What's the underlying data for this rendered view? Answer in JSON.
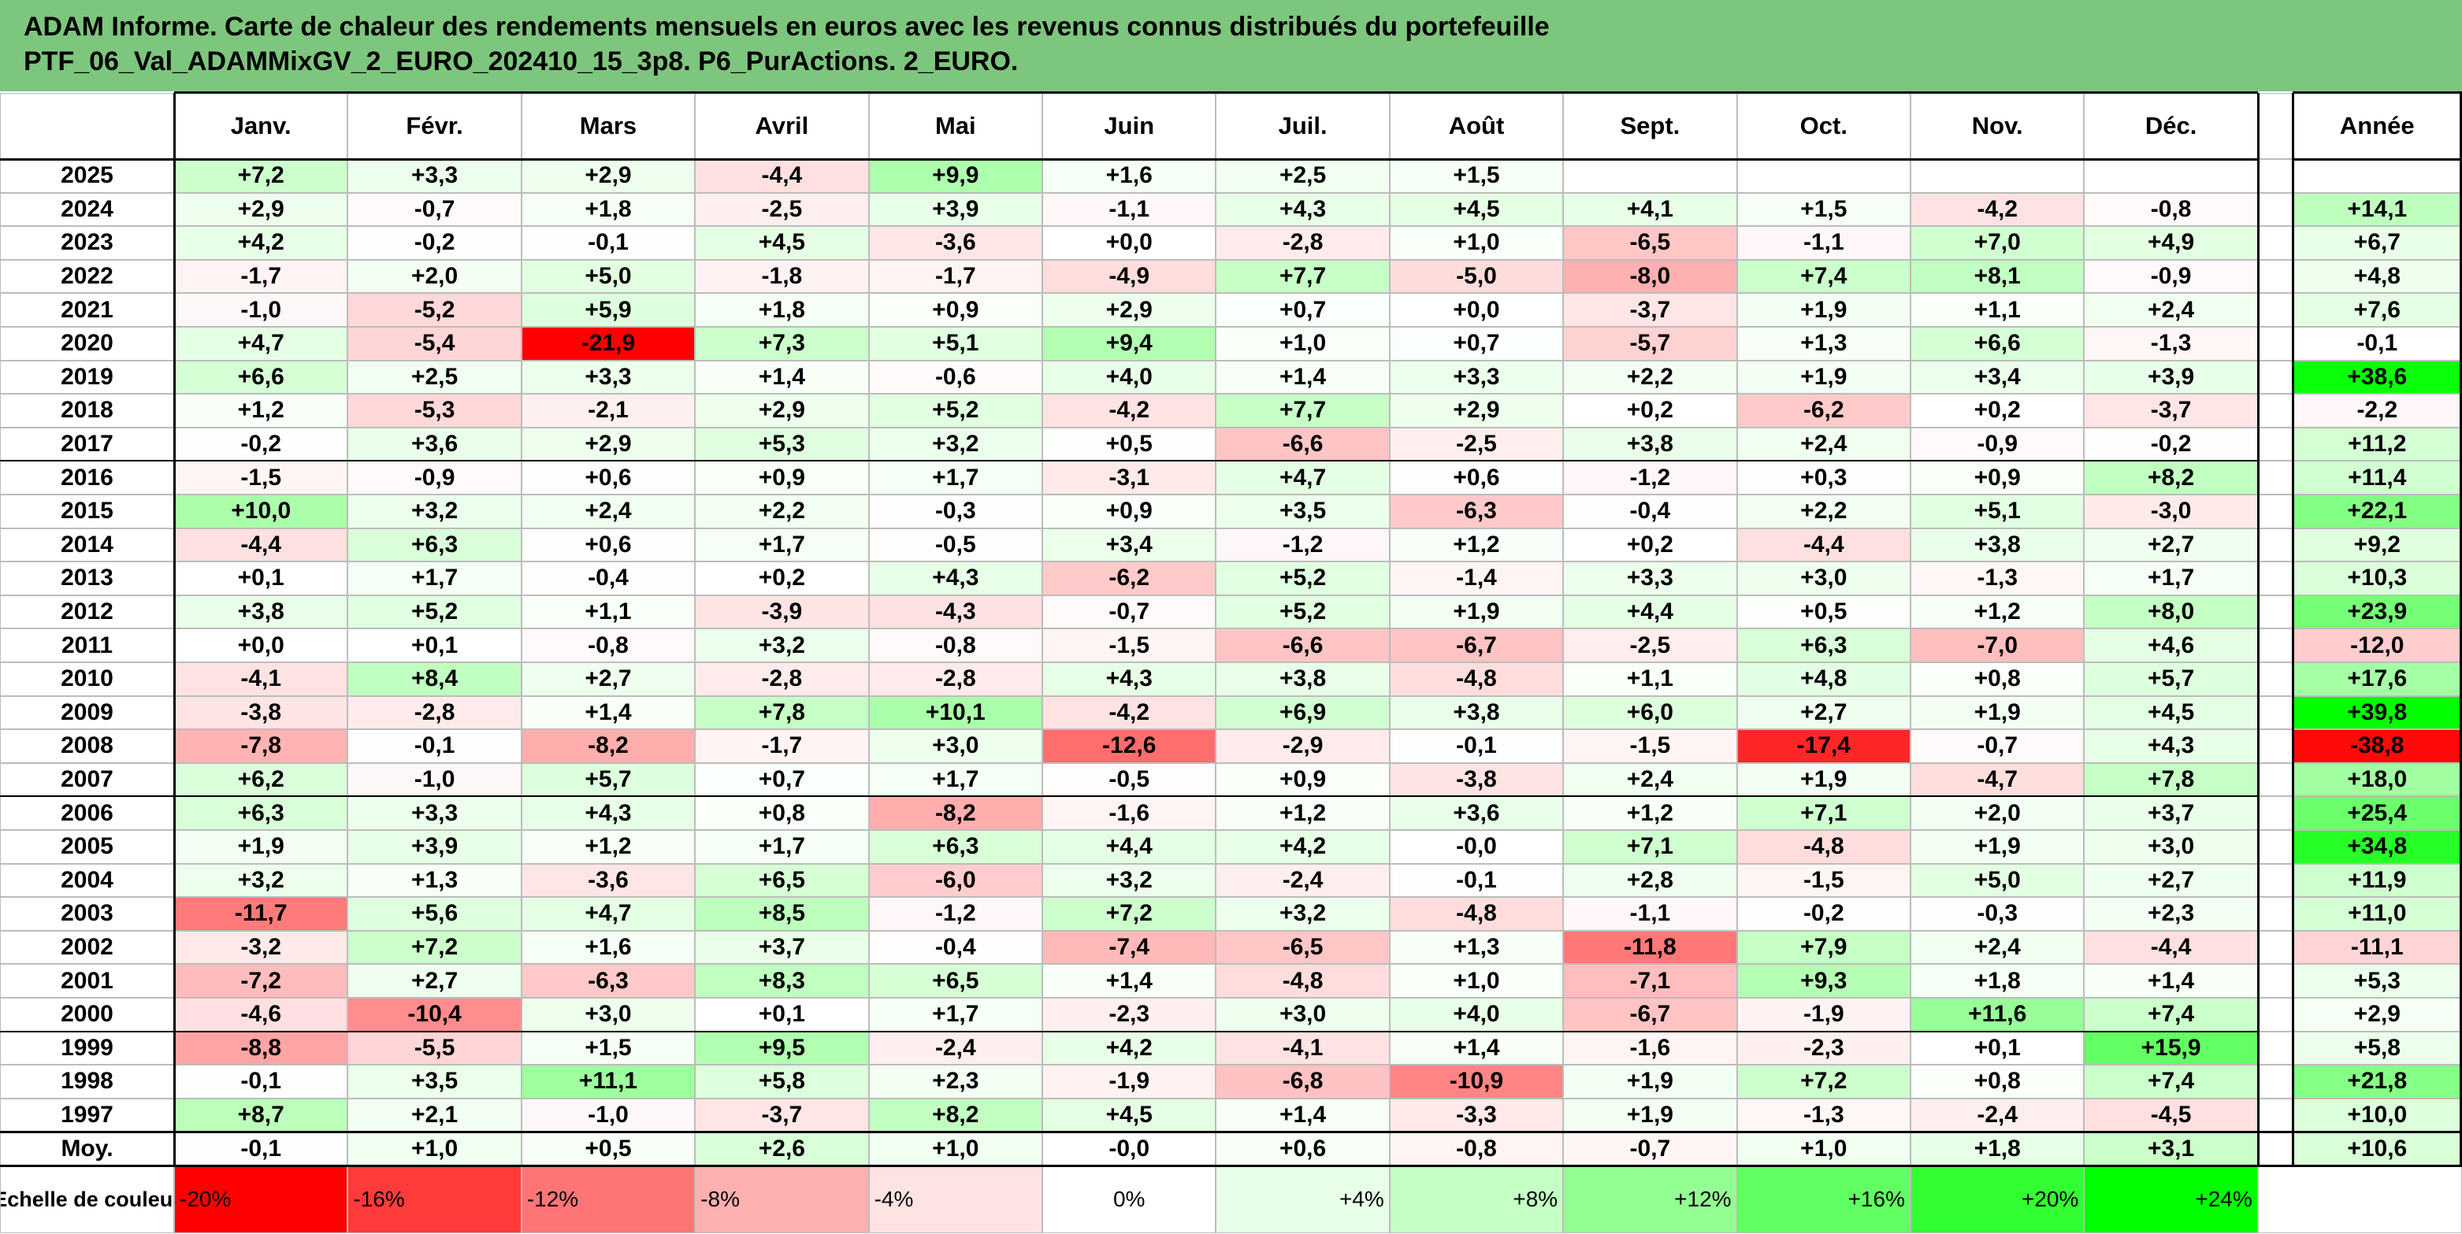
{
  "title_lines": [
    "ADAM Informe. Carte de chaleur des rendements mensuels en euros avec les revenus connus distribués du portefeuille",
    "PTF_06_Val_ADAMMixGV_2_EURO_202410_15_3p8. P6_PurActions. 2_EURO."
  ],
  "chart_data": {
    "type": "heatmap",
    "months": [
      "Janv.",
      "Févr.",
      "Mars",
      "Avril",
      "Mai",
      "Juin",
      "Juil.",
      "Août",
      "Sept.",
      "Oct.",
      "Nov.",
      "Déc."
    ],
    "year_header": "Année",
    "rows": [
      {
        "label": "2025",
        "months": [
          "+7,2",
          "+3,3",
          "+2,9",
          "-4,4",
          "+9,9",
          "+1,6",
          "+2,5",
          "+1,5",
          "",
          "",
          "",
          ""
        ],
        "year": ""
      },
      {
        "label": "2024",
        "months": [
          "+2,9",
          "-0,7",
          "+1,8",
          "-2,5",
          "+3,9",
          "-1,1",
          "+4,3",
          "+4,5",
          "+4,1",
          "+1,5",
          "-4,2",
          "-0,8"
        ],
        "year": "+14,1"
      },
      {
        "label": "2023",
        "months": [
          "+4,2",
          "-0,2",
          "-0,1",
          "+4,5",
          "-3,6",
          "+0,0",
          "-2,8",
          "+1,0",
          "-6,5",
          "-1,1",
          "+7,0",
          "+4,9"
        ],
        "year": "+6,7"
      },
      {
        "label": "2022",
        "months": [
          "-1,7",
          "+2,0",
          "+5,0",
          "-1,8",
          "-1,7",
          "-4,9",
          "+7,7",
          "-5,0",
          "-8,0",
          "+7,4",
          "+8,1",
          "-0,9"
        ],
        "year": "+4,8"
      },
      {
        "label": "2021",
        "months": [
          "-1,0",
          "-5,2",
          "+5,9",
          "+1,8",
          "+0,9",
          "+2,9",
          "+0,7",
          "+0,0",
          "-3,7",
          "+1,9",
          "+1,1",
          "+2,4"
        ],
        "year": "+7,6"
      },
      {
        "label": "2020",
        "months": [
          "+4,7",
          "-5,4",
          "-21,9",
          "+7,3",
          "+5,1",
          "+9,4",
          "+1,0",
          "+0,7",
          "-5,7",
          "+1,3",
          "+6,6",
          "-1,3"
        ],
        "year": "-0,1"
      },
      {
        "label": "2019",
        "months": [
          "+6,6",
          "+2,5",
          "+3,3",
          "+1,4",
          "-0,6",
          "+4,0",
          "+1,4",
          "+3,3",
          "+2,2",
          "+1,9",
          "+3,4",
          "+3,9"
        ],
        "year": "+38,6"
      },
      {
        "label": "2018",
        "months": [
          "+1,2",
          "-5,3",
          "-2,1",
          "+2,9",
          "+5,2",
          "-4,2",
          "+7,7",
          "+2,9",
          "+0,2",
          "-6,2",
          "+0,2",
          "-3,7"
        ],
        "year": "-2,2"
      },
      {
        "label": "2017",
        "months": [
          "-0,2",
          "+3,6",
          "+2,9",
          "+5,3",
          "+3,2",
          "+0,5",
          "-6,6",
          "-2,5",
          "+3,8",
          "+2,4",
          "-0,9",
          "-0,2"
        ],
        "year": "+11,2"
      },
      {
        "label": "2016",
        "months": [
          "-1,5",
          "-0,9",
          "+0,6",
          "+0,9",
          "+1,7",
          "-3,1",
          "+4,7",
          "+0,6",
          "-1,2",
          "+0,3",
          "+0,9",
          "+8,2"
        ],
        "year": "+11,4"
      },
      {
        "label": "2015",
        "months": [
          "+10,0",
          "+3,2",
          "+2,4",
          "+2,2",
          "-0,3",
          "+0,9",
          "+3,5",
          "-6,3",
          "-0,4",
          "+2,2",
          "+5,1",
          "-3,0"
        ],
        "year": "+22,1"
      },
      {
        "label": "2014",
        "months": [
          "-4,4",
          "+6,3",
          "+0,6",
          "+1,7",
          "-0,5",
          "+3,4",
          "-1,2",
          "+1,2",
          "+0,2",
          "-4,4",
          "+3,8",
          "+2,7"
        ],
        "year": "+9,2"
      },
      {
        "label": "2013",
        "months": [
          "+0,1",
          "+1,7",
          "-0,4",
          "+0,2",
          "+4,3",
          "-6,2",
          "+5,2",
          "-1,4",
          "+3,3",
          "+3,0",
          "-1,3",
          "+1,7"
        ],
        "year": "+10,3"
      },
      {
        "label": "2012",
        "months": [
          "+3,8",
          "+5,2",
          "+1,1",
          "-3,9",
          "-4,3",
          "-0,7",
          "+5,2",
          "+1,9",
          "+4,4",
          "+0,5",
          "+1,2",
          "+8,0"
        ],
        "year": "+23,9"
      },
      {
        "label": "2011",
        "months": [
          "+0,0",
          "+0,1",
          "-0,8",
          "+3,2",
          "-0,8",
          "-1,5",
          "-6,6",
          "-6,7",
          "-2,5",
          "+6,3",
          "-7,0",
          "+4,6"
        ],
        "year": "-12,0"
      },
      {
        "label": "2010",
        "months": [
          "-4,1",
          "+8,4",
          "+2,7",
          "-2,8",
          "-2,8",
          "+4,3",
          "+3,8",
          "-4,8",
          "+1,1",
          "+4,8",
          "+0,8",
          "+5,7"
        ],
        "year": "+17,6"
      },
      {
        "label": "2009",
        "months": [
          "-3,8",
          "-2,8",
          "+1,4",
          "+7,8",
          "+10,1",
          "-4,2",
          "+6,9",
          "+3,8",
          "+6,0",
          "+2,7",
          "+1,9",
          "+4,5"
        ],
        "year": "+39,8"
      },
      {
        "label": "2008",
        "months": [
          "-7,8",
          "-0,1",
          "-8,2",
          "-1,7",
          "+3,0",
          "-12,6",
          "-2,9",
          "-0,1",
          "-1,5",
          "-17,4",
          "-0,7",
          "+4,3"
        ],
        "year": "-38,8"
      },
      {
        "label": "2007",
        "months": [
          "+6,2",
          "-1,0",
          "+5,7",
          "+0,7",
          "+1,7",
          "-0,5",
          "+0,9",
          "-3,8",
          "+2,4",
          "+1,9",
          "-4,7",
          "+7,8"
        ],
        "year": "+18,0"
      },
      {
        "label": "2006",
        "months": [
          "+6,3",
          "+3,3",
          "+4,3",
          "+0,8",
          "-8,2",
          "-1,6",
          "+1,2",
          "+3,6",
          "+1,2",
          "+7,1",
          "+2,0",
          "+3,7"
        ],
        "year": "+25,4"
      },
      {
        "label": "2005",
        "months": [
          "+1,9",
          "+3,9",
          "+1,2",
          "+1,7",
          "+6,3",
          "+4,4",
          "+4,2",
          "-0,0",
          "+7,1",
          "-4,8",
          "+1,9",
          "+3,0"
        ],
        "year": "+34,8"
      },
      {
        "label": "2004",
        "months": [
          "+3,2",
          "+1,3",
          "-3,6",
          "+6,5",
          "-6,0",
          "+3,2",
          "-2,4",
          "-0,1",
          "+2,8",
          "-1,5",
          "+5,0",
          "+2,7"
        ],
        "year": "+11,9"
      },
      {
        "label": "2003",
        "months": [
          "-11,7",
          "+5,6",
          "+4,7",
          "+8,5",
          "-1,2",
          "+7,2",
          "+3,2",
          "-4,8",
          "-1,1",
          "-0,2",
          "-0,3",
          "+2,3"
        ],
        "year": "+11,0"
      },
      {
        "label": "2002",
        "months": [
          "-3,2",
          "+7,2",
          "+1,6",
          "+3,7",
          "-0,4",
          "-7,4",
          "-6,5",
          "+1,3",
          "-11,8",
          "+7,9",
          "+2,4",
          "-4,4"
        ],
        "year": "-11,1"
      },
      {
        "label": "2001",
        "months": [
          "-7,2",
          "+2,7",
          "-6,3",
          "+8,3",
          "+6,5",
          "+1,4",
          "-4,8",
          "+1,0",
          "-7,1",
          "+9,3",
          "+1,8",
          "+1,4"
        ],
        "year": "+5,3"
      },
      {
        "label": "2000",
        "months": [
          "-4,6",
          "-10,4",
          "+3,0",
          "+0,1",
          "+1,7",
          "-2,3",
          "+3,0",
          "+4,0",
          "-6,7",
          "-1,9",
          "+11,6",
          "+7,4"
        ],
        "year": "+2,9"
      },
      {
        "label": "1999",
        "months": [
          "-8,8",
          "-5,5",
          "+1,5",
          "+9,5",
          "-2,4",
          "+4,2",
          "-4,1",
          "+1,4",
          "-1,6",
          "-2,3",
          "+0,1",
          "+15,9"
        ],
        "year": "+5,8"
      },
      {
        "label": "1998",
        "months": [
          "-0,1",
          "+3,5",
          "+11,1",
          "+5,8",
          "+2,3",
          "-1,9",
          "-6,8",
          "-10,9",
          "+1,9",
          "+7,2",
          "+0,8",
          "+7,4"
        ],
        "year": "+21,8"
      },
      {
        "label": "1997",
        "months": [
          "+8,7",
          "+2,1",
          "-1,0",
          "-3,7",
          "+8,2",
          "+4,5",
          "+1,4",
          "-3,3",
          "+1,9",
          "-1,3",
          "-2,4",
          "-4,5"
        ],
        "year": "+10,0"
      }
    ],
    "average": {
      "label": "Moy.",
      "months": [
        "-0,1",
        "+1,0",
        "+0,5",
        "+2,6",
        "+1,0",
        "-0,0",
        "+0,6",
        "-0,8",
        "-0,7",
        "+1,0",
        "+1,8",
        "+3,1"
      ],
      "year": "+10,6"
    },
    "color_scale": {
      "label": "Echelle de couleur",
      "stops": [
        "-20%",
        "-16%",
        "-12%",
        "-8%",
        "-4%",
        "0%",
        "+4%",
        "+8%",
        "+12%",
        "+16%",
        "+20%",
        "+24%"
      ],
      "stop_values": [
        -20,
        -16,
        -12,
        -8,
        -4,
        0,
        4,
        8,
        12,
        16,
        20,
        24
      ]
    }
  }
}
